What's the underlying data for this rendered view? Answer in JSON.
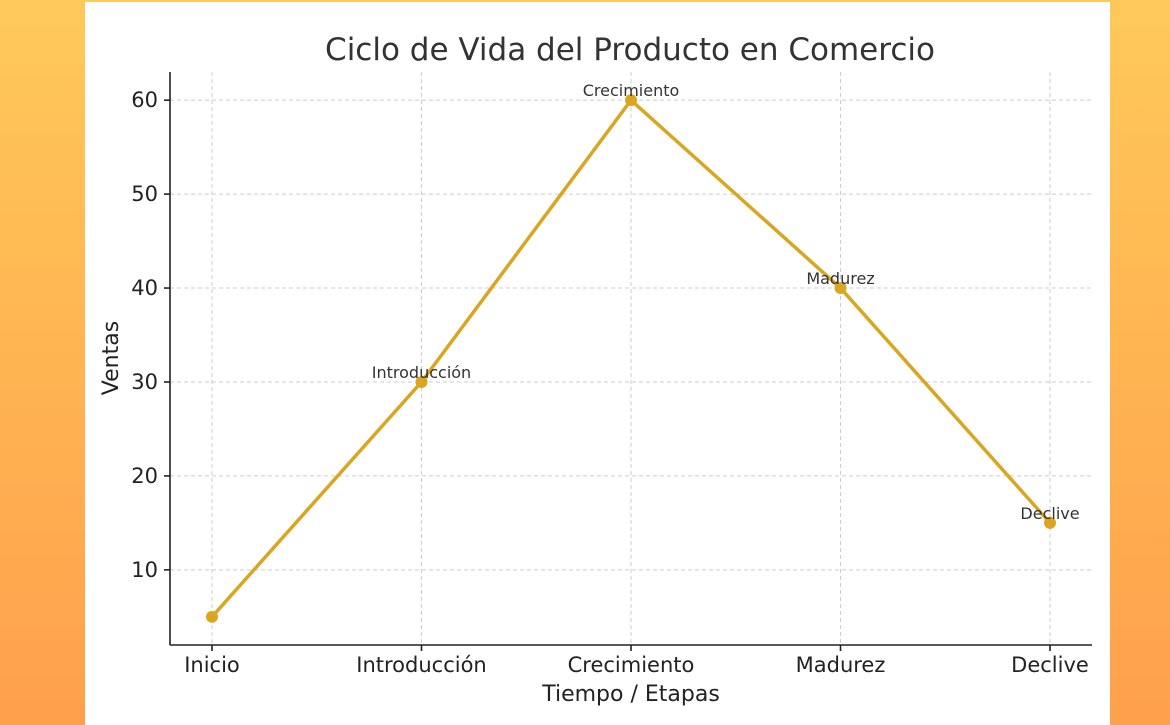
{
  "chart_data": {
    "type": "line",
    "title": "Ciclo de Vida del Producto en Comercio",
    "xlabel": "Tiempo / Etapas",
    "ylabel": "Ventas",
    "categories": [
      "Inicio",
      "Introducción",
      "Crecimiento",
      "Madurez",
      "Declive"
    ],
    "series": [
      {
        "values": [
          5,
          30,
          60,
          40,
          15
        ]
      }
    ],
    "annotations": [
      {
        "category": "Introducción",
        "text": "Introducción"
      },
      {
        "category": "Crecimiento",
        "text": "Crecimiento"
      },
      {
        "category": "Madurez",
        "text": "Madurez"
      },
      {
        "category": "Declive",
        "text": "Declive"
      }
    ],
    "ylim": [
      2,
      63
    ],
    "yticks": [
      10,
      20,
      30,
      40,
      50,
      60
    ],
    "grid": true,
    "line_color": "#DAA520"
  }
}
